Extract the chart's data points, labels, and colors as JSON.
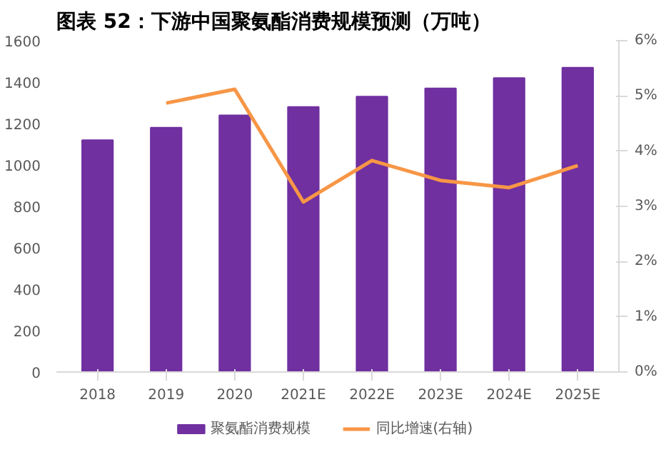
{
  "chart_data": {
    "type": "bar",
    "title": "图表 52：下游中国聚氨酯消费规模预测（万吨）",
    "categories": [
      "2018",
      "2019",
      "2020",
      "2021E",
      "2022E",
      "2023E",
      "2024E",
      "2025E"
    ],
    "series": [
      {
        "name": "聚氨酯消费规模",
        "color": "#7030a0",
        "values": [
          1120,
          1180,
          1240,
          1280,
          1330,
          1370,
          1420,
          1470
        ]
      },
      {
        "name": "同比增速(右轴)",
        "color": "#f79646",
        "type": "line",
        "axis": "y2",
        "values": [
          null,
          4.87,
          5.12,
          3.08,
          3.83,
          3.47,
          3.34,
          3.74
        ]
      }
    ],
    "ylim": [
      0,
      1600
    ],
    "yticks": [
      0,
      200,
      400,
      600,
      800,
      1000,
      1200,
      1400,
      1600
    ],
    "y2lim": [
      0,
      6
    ],
    "y2ticks": [
      {
        "value": 0,
        "label": "0%"
      },
      {
        "value": 1,
        "label": "1%"
      },
      {
        "value": 2,
        "label": "2%"
      },
      {
        "value": 3,
        "label": "3%"
      },
      {
        "value": 4,
        "label": "4%"
      },
      {
        "value": 5,
        "label": "5%"
      },
      {
        "value": 6,
        "label": "6%"
      }
    ],
    "grid": false,
    "legend": "bottom"
  }
}
